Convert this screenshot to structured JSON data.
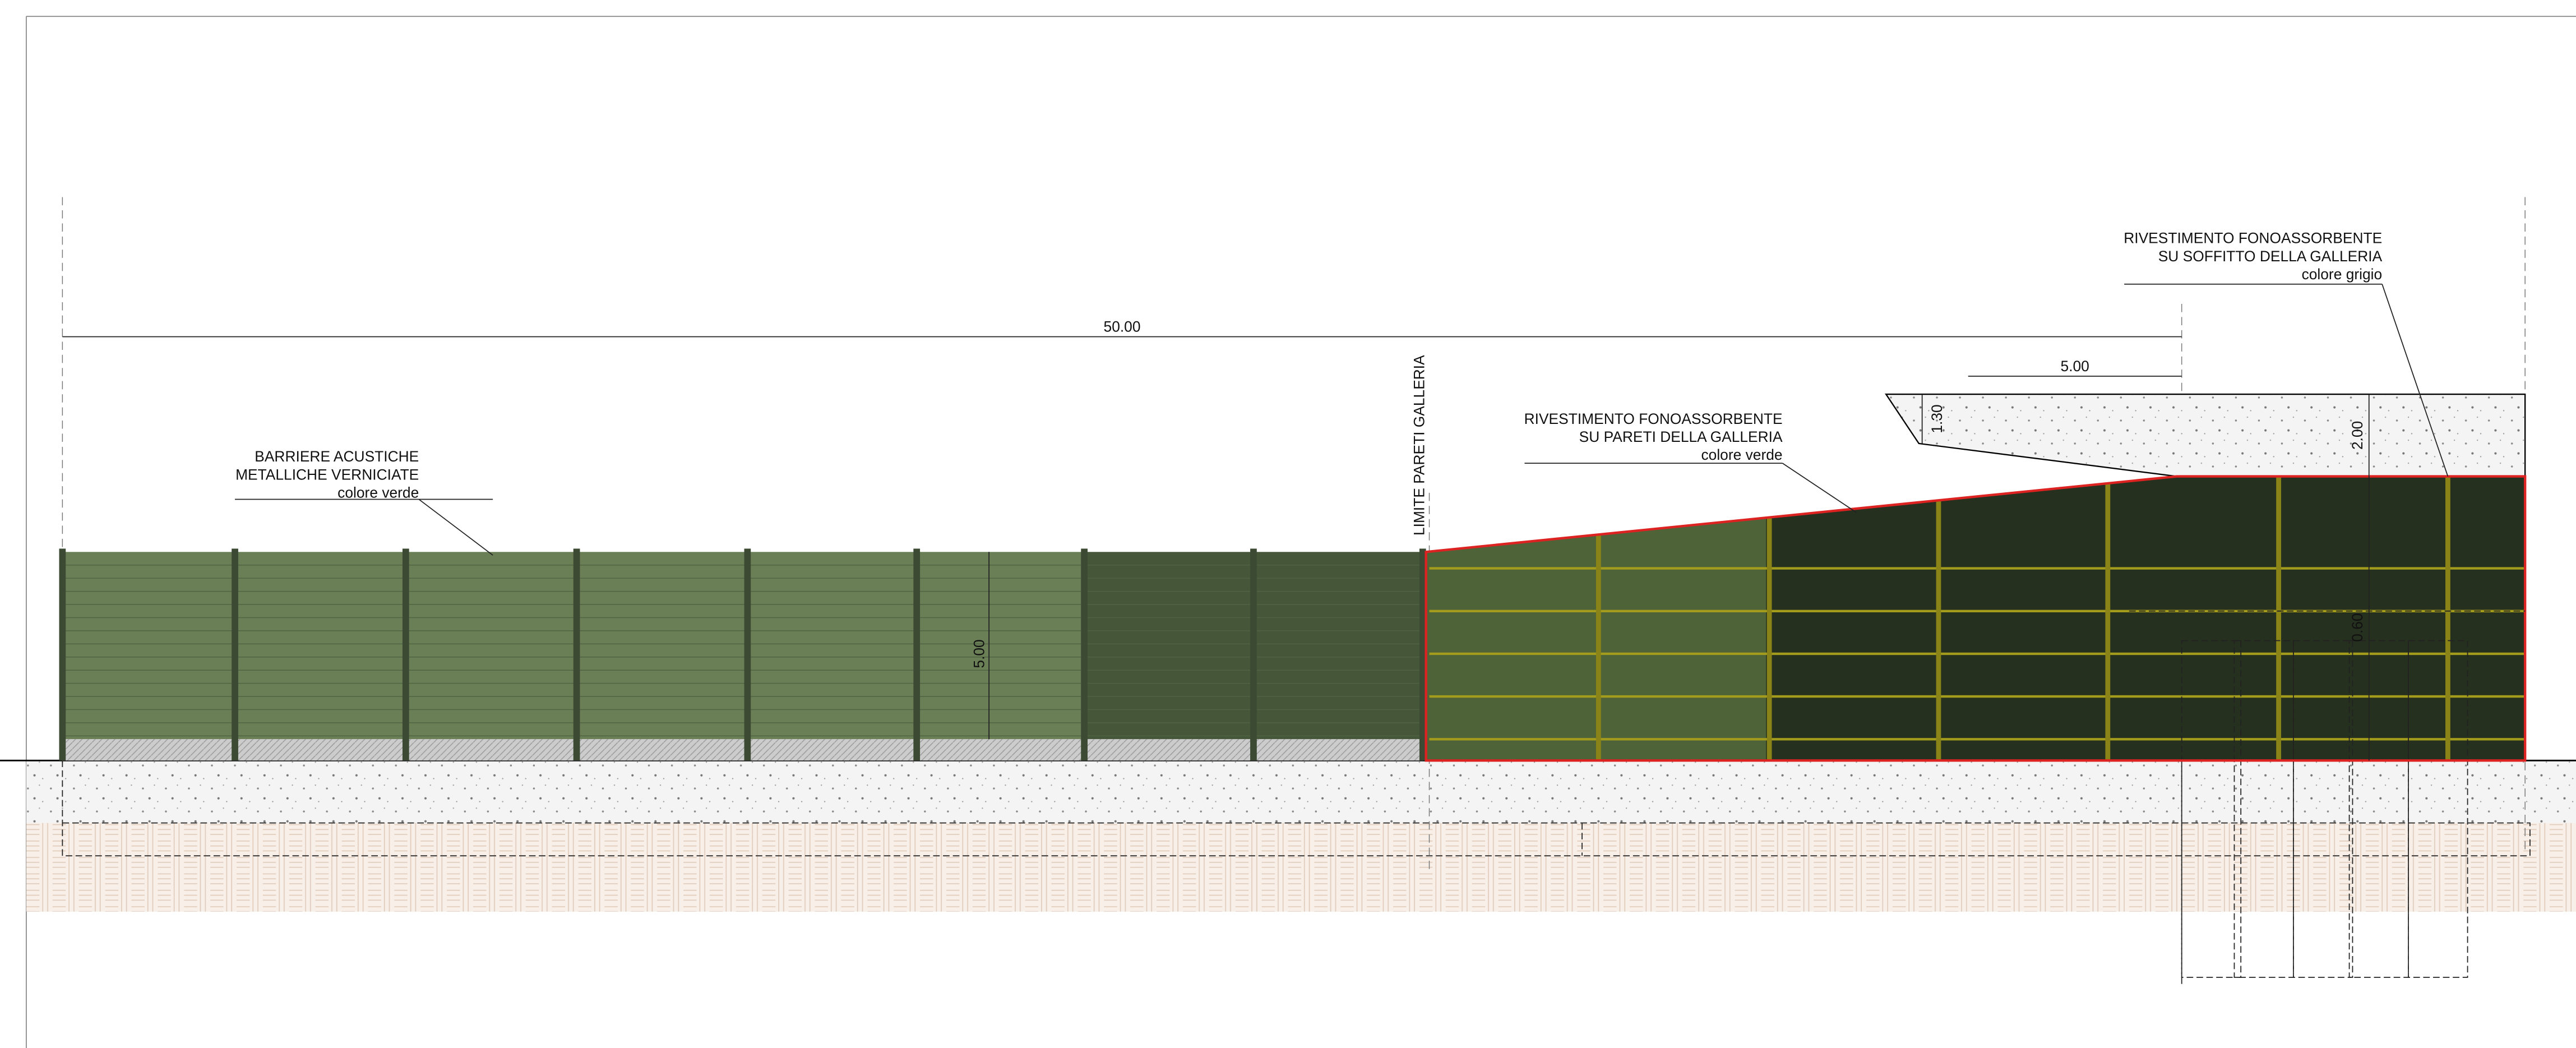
{
  "dimensions": {
    "total_length": "50.00",
    "slab_overhang": "5.00",
    "slab_edge": "1.30",
    "slab_depth": "2.00",
    "barrier_height": "5.00",
    "foundation": "0.60"
  },
  "boundary_label": "LIMITE PARETI GALLERIA",
  "annotations": [
    {
      "lines": [
        "BARRIERE ACUSTICHE",
        "METALLICHE VERNICIATE",
        "colore verde"
      ]
    },
    {
      "lines": [
        "RIVESTIMENTO FONOASSORBENTE",
        "SU PARETI DELLA GALLERIA",
        "colore verde"
      ]
    },
    {
      "lines": [
        "RIVESTIMENTO FONOASSORBENTE",
        "SU SOFFITTO DELLA GALLERIA",
        "colore grigio"
      ]
    }
  ]
}
